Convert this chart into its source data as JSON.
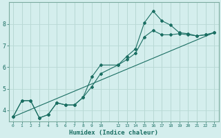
{
  "xlabel": "Humidex (Indice chaleur)",
  "ylabel": "",
  "bg_color": "#d4eeed",
  "grid_color": "#b8d8d4",
  "line_color": "#1a6e62",
  "xlim": [
    -0.5,
    23.5
  ],
  "ylim": [
    3.5,
    9.0
  ],
  "yticks": [
    4,
    5,
    6,
    7,
    8
  ],
  "xticks": [
    0,
    1,
    2,
    3,
    4,
    5,
    6,
    7,
    8,
    9,
    10,
    12,
    13,
    14,
    15,
    16,
    17,
    18,
    19,
    20,
    21,
    22,
    23
  ],
  "line1_x": [
    0,
    1,
    2,
    3,
    4,
    5,
    6,
    7,
    8,
    9,
    10,
    12,
    13,
    14,
    15,
    16,
    17,
    18,
    19,
    20,
    21,
    22,
    23
  ],
  "line1_y": [
    3.7,
    4.45,
    4.45,
    3.65,
    3.8,
    4.35,
    4.25,
    4.25,
    4.6,
    5.55,
    6.1,
    6.1,
    6.5,
    6.85,
    8.05,
    8.6,
    8.15,
    7.95,
    7.6,
    7.55,
    7.45,
    7.5,
    7.6
  ],
  "line2_x": [
    0,
    1,
    2,
    3,
    4,
    5,
    6,
    7,
    8,
    9,
    10,
    12,
    13,
    14,
    15,
    16,
    17,
    18,
    19,
    20,
    21,
    22,
    23
  ],
  "line2_y": [
    3.7,
    4.45,
    4.45,
    3.65,
    3.8,
    4.35,
    4.25,
    4.25,
    4.6,
    5.1,
    5.7,
    6.1,
    6.35,
    6.65,
    7.4,
    7.7,
    7.5,
    7.5,
    7.55,
    7.5,
    7.45,
    7.5,
    7.6
  ],
  "line3_x": [
    0,
    23
  ],
  "line3_y": [
    3.7,
    7.6
  ]
}
